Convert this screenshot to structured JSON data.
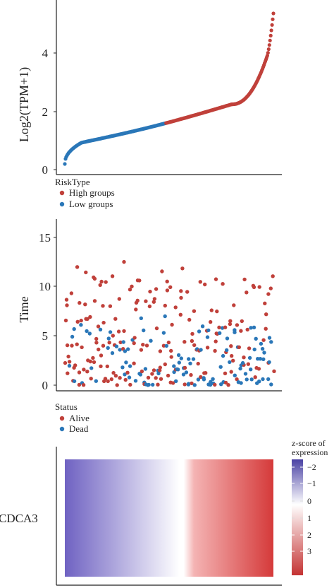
{
  "colors": {
    "high": "#c0403a",
    "low": "#2a77b8",
    "alive": "#c0403a",
    "dead": "#2a77b8",
    "heat_low": "#5b4fb0",
    "heat_mid": "#ffffff",
    "heat_high": "#d33a3a"
  },
  "chart_data": [
    {
      "type": "scatter",
      "ylabel": "Log2(TPM+1)",
      "xlabel": "",
      "ylim": [
        0,
        5.6
      ],
      "y_ticks": [
        "0",
        "2",
        "4"
      ],
      "n_points": 310,
      "low_high_split_index": 150,
      "y_min": 0.2,
      "y_median": 1.6,
      "y_max": 5.5,
      "legend": {
        "title": "RiskType",
        "placement": "bottom-left",
        "entries": [
          "High groups",
          "Low groups"
        ]
      }
    },
    {
      "type": "scatter",
      "ylabel": "Time",
      "xlabel": "",
      "ylim": [
        0,
        17
      ],
      "y_ticks": [
        "0",
        "5",
        "10",
        "15"
      ],
      "n_points": 310,
      "max_time": 12.8,
      "legend": {
        "title": "Status",
        "placement": "bottom-left",
        "entries": [
          "Alive",
          "Dead"
        ]
      }
    },
    {
      "type": "heatmap",
      "row_labels": [
        "CDCA3"
      ],
      "color_range": [
        -2.3,
        3.6
      ],
      "legend": {
        "title_line1": "z-score of",
        "title_line2": "expression",
        "ticks": [
          "−2",
          "−1",
          "0",
          "1",
          "2",
          "3"
        ]
      }
    }
  ]
}
